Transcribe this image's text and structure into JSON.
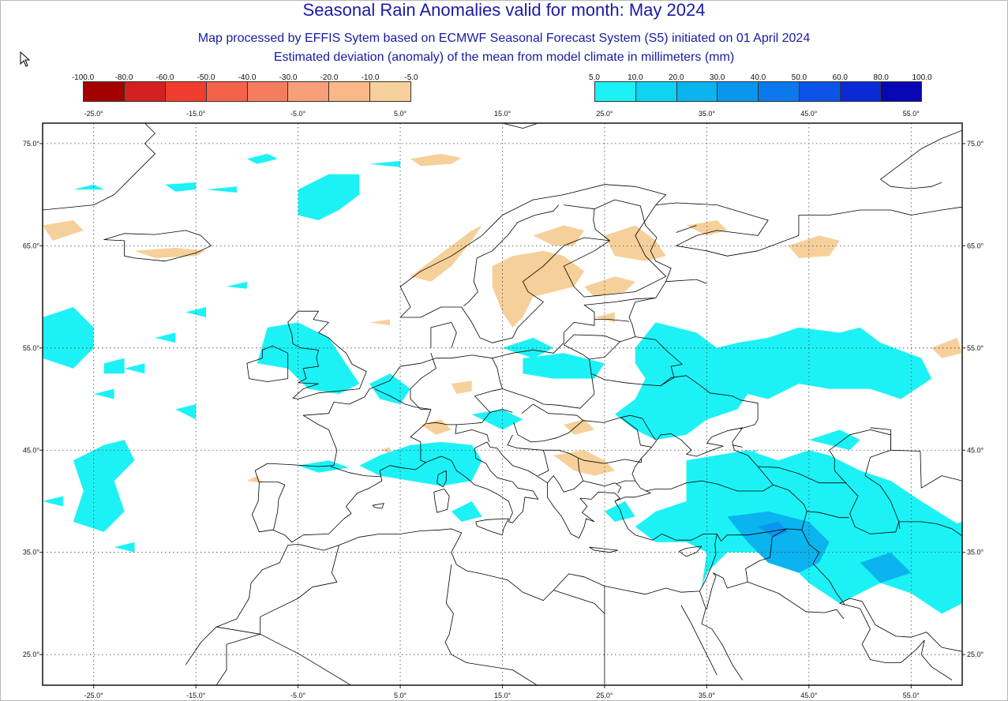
{
  "header": {
    "title": "Seasonal Rain Anomalies valid for month: May 2024",
    "subtitle": "Map processed by EFFIS Sytem based on ECMWF Seasonal Forecast System (S5) initiated on 01 April 2024",
    "description": "Estimated deviation (anomaly) of the mean from model climate in millimeters (mm)"
  },
  "legend": {
    "negative": {
      "labels": [
        "-100.0",
        "-80.0",
        "-60.0",
        "-50.0",
        "-40.0",
        "-30.0",
        "-20.0",
        "-10.0",
        "-5.0"
      ],
      "colors": [
        "#a40000",
        "#d32020",
        "#f03c2c",
        "#f4624a",
        "#f47d5e",
        "#f89e78",
        "#fab888",
        "#f6d09a"
      ]
    },
    "positive": {
      "labels": [
        "5.0",
        "10.0",
        "20.0",
        "30.0",
        "40.0",
        "50.0",
        "60.0",
        "80.0",
        "100.0"
      ],
      "colors": [
        "#1cf2f6",
        "#0fd2f2",
        "#0bb4ee",
        "#0996ee",
        "#0b78ec",
        "#0c54e8",
        "#0a2ad6",
        "#0707b4"
      ]
    },
    "longitude_ticks": [
      "-25.0°",
      "-15.0°",
      "-5.0°",
      "5.0°",
      "15.0°",
      "25.0°",
      "35.0°",
      "45.0°",
      "55.0°"
    ]
  },
  "map": {
    "lon_range": [
      -30,
      60
    ],
    "lat_range": [
      22,
      77
    ],
    "lon_ticks": [
      "-25.0°",
      "-15.0°",
      "-5.0°",
      "5.0°",
      "15.0°",
      "25.0°",
      "35.0°",
      "45.0°",
      "55.0°"
    ],
    "lat_ticks_left": [
      "75.0°",
      "65.0°",
      "55.0°",
      "45.0°",
      "35.0°",
      "25.0°"
    ],
    "lat_ticks_right": [
      "75.0°",
      "65.0°",
      "55.0°",
      "45.0°",
      "35.0°",
      "25.0°"
    ],
    "grid": "dotted",
    "colors": {
      "positive_light": "#1cf2f6",
      "positive_mid": "#0fd2f2",
      "positive_dark": "#0bb4ee",
      "positive_darker": "#0996ee",
      "negative_light": "#f6d09a",
      "negative_mid": "#fab888",
      "coastline": "#000000"
    }
  }
}
